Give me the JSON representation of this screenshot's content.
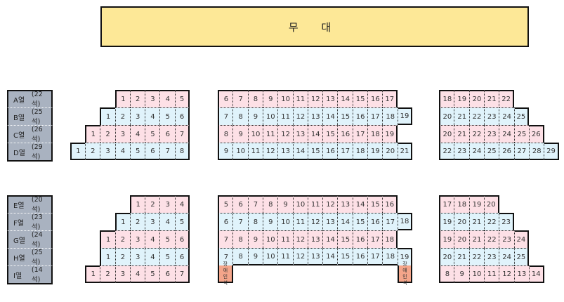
{
  "stage": {
    "label": "무 대"
  },
  "colors": {
    "row_odd": "#fde0e6",
    "row_even": "#e0f3fb",
    "label_bg": "#a9b2c0",
    "stage_bg": "#fde897",
    "accessible": "#f4a58a"
  },
  "accessible_label": "장애인석",
  "upper": {
    "labels": [
      {
        "row": "A열",
        "count": "(22석)"
      },
      {
        "row": "B열",
        "count": "(25석)"
      },
      {
        "row": "C열",
        "count": "(26석)"
      },
      {
        "row": "D열",
        "count": "(29석)"
      }
    ],
    "left": [
      [
        1,
        2,
        3,
        4,
        5
      ],
      [
        1,
        2,
        3,
        4,
        5,
        6
      ],
      [
        1,
        2,
        3,
        4,
        5,
        6,
        7
      ],
      [
        1,
        2,
        3,
        4,
        5,
        6,
        7,
        8
      ]
    ],
    "middle": [
      [
        6,
        7,
        8,
        9,
        10,
        11,
        12,
        13,
        14,
        15,
        16,
        17
      ],
      [
        7,
        8,
        9,
        10,
        11,
        12,
        13,
        14,
        15,
        16,
        17,
        18,
        19
      ],
      [
        8,
        9,
        10,
        11,
        12,
        13,
        14,
        15,
        16,
        17,
        18,
        19
      ],
      [
        9,
        10,
        11,
        12,
        13,
        14,
        15,
        16,
        17,
        18,
        19,
        20,
        21
      ]
    ],
    "right": [
      [
        18,
        19,
        20,
        21,
        22
      ],
      [
        20,
        21,
        22,
        23,
        24,
        25
      ],
      [
        20,
        21,
        22,
        23,
        24,
        25,
        26
      ],
      [
        22,
        23,
        24,
        25,
        26,
        27,
        28,
        29
      ]
    ]
  },
  "lower": {
    "labels": [
      {
        "row": "E열",
        "count": "(20석)"
      },
      {
        "row": "F열",
        "count": "(23석)"
      },
      {
        "row": "G열",
        "count": "(24석)"
      },
      {
        "row": "H열",
        "count": "(25석)"
      },
      {
        "row": "I열",
        "count": "(14석)"
      }
    ],
    "left": [
      [
        1,
        2,
        3,
        4
      ],
      [
        1,
        2,
        3,
        4,
        5
      ],
      [
        1,
        2,
        3,
        4,
        5,
        6
      ],
      [
        1,
        2,
        3,
        4,
        5,
        6
      ],
      [
        1,
        2,
        3,
        4,
        5,
        6,
        7
      ]
    ],
    "middle": [
      [
        5,
        6,
        7,
        8,
        9,
        10,
        11,
        12,
        13,
        14,
        15,
        16
      ],
      [
        6,
        7,
        8,
        9,
        10,
        11,
        12,
        13,
        14,
        15,
        16,
        17,
        18
      ],
      [
        7,
        8,
        9,
        10,
        11,
        12,
        13,
        14,
        15,
        16,
        17,
        18
      ],
      [
        7,
        8,
        9,
        10,
        11,
        12,
        13,
        14,
        15,
        16,
        17,
        18,
        19
      ],
      []
    ],
    "right": [
      [
        17,
        18,
        19,
        20
      ],
      [
        19,
        20,
        21,
        22,
        23
      ],
      [
        19,
        20,
        21,
        22,
        23,
        24
      ],
      [
        20,
        21,
        22,
        23,
        24,
        25
      ],
      [
        8,
        9,
        10,
        11,
        12,
        13,
        14
      ]
    ]
  }
}
